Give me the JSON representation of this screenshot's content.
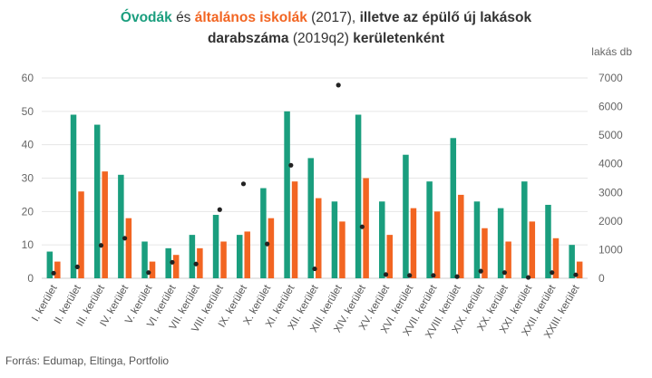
{
  "title": {
    "part1": "Óvodák",
    "part2": "és",
    "part3": "általános iskolák",
    "part4": "(2017),",
    "part5": "illetve az épülő új lakások",
    "part6": "darabszáma",
    "part7": "(2019q2)",
    "part8": "kerületenként"
  },
  "source": "Forrás: Edumap, Eltinga, Portfolio",
  "chart_data": {
    "type": "bar",
    "categories": [
      "I. kerület",
      "II. kerület",
      "III. kerület",
      "IV. kerület",
      "V. kerület",
      "VI. kerület",
      "VII. kerület",
      "VIII. kerület",
      "IX. kerület",
      "X. kerület",
      "XI. kerület",
      "XII. kerület",
      "XIII. kerület",
      "XIV. kerület",
      "XV. kerület",
      "XVI. kerület",
      "XVII. kerület",
      "XVIII. kerület",
      "XIX. kerület",
      "XX. kerület",
      "XXI. kerület",
      "XXII. kerület",
      "XXIII. kerület"
    ],
    "series": [
      {
        "name": "Óvodák",
        "axis": "left",
        "kind": "bar",
        "color": "#1a9e7e",
        "values": [
          8,
          49,
          46,
          31,
          11,
          9,
          13,
          19,
          13,
          27,
          50,
          36,
          23,
          49,
          23,
          37,
          29,
          42,
          23,
          21,
          29,
          22,
          10
        ]
      },
      {
        "name": "általános iskolák",
        "axis": "left",
        "kind": "bar",
        "color": "#f26522",
        "values": [
          5,
          26,
          32,
          18,
          5,
          7,
          9,
          11,
          14,
          18,
          29,
          24,
          17,
          30,
          13,
          21,
          20,
          25,
          15,
          11,
          17,
          12,
          5
        ]
      },
      {
        "axis": "right",
        "kind": "dot",
        "color": "#222222",
        "values": [
          180,
          400,
          1150,
          1400,
          200,
          560,
          500,
          2400,
          3300,
          1200,
          3950,
          330,
          6750,
          1800,
          130,
          100,
          100,
          60,
          250,
          200,
          30,
          200,
          120
        ]
      }
    ],
    "left_axis": {
      "min": 0,
      "max": 60,
      "ticks": [
        0,
        10,
        20,
        30,
        40,
        50,
        60
      ]
    },
    "right_axis": {
      "label": "lakás db",
      "min": 0,
      "max": 7000,
      "ticks": [
        0,
        1000,
        2000,
        3000,
        4000,
        5000,
        6000,
        7000
      ]
    },
    "grid": true,
    "legend": "none"
  }
}
